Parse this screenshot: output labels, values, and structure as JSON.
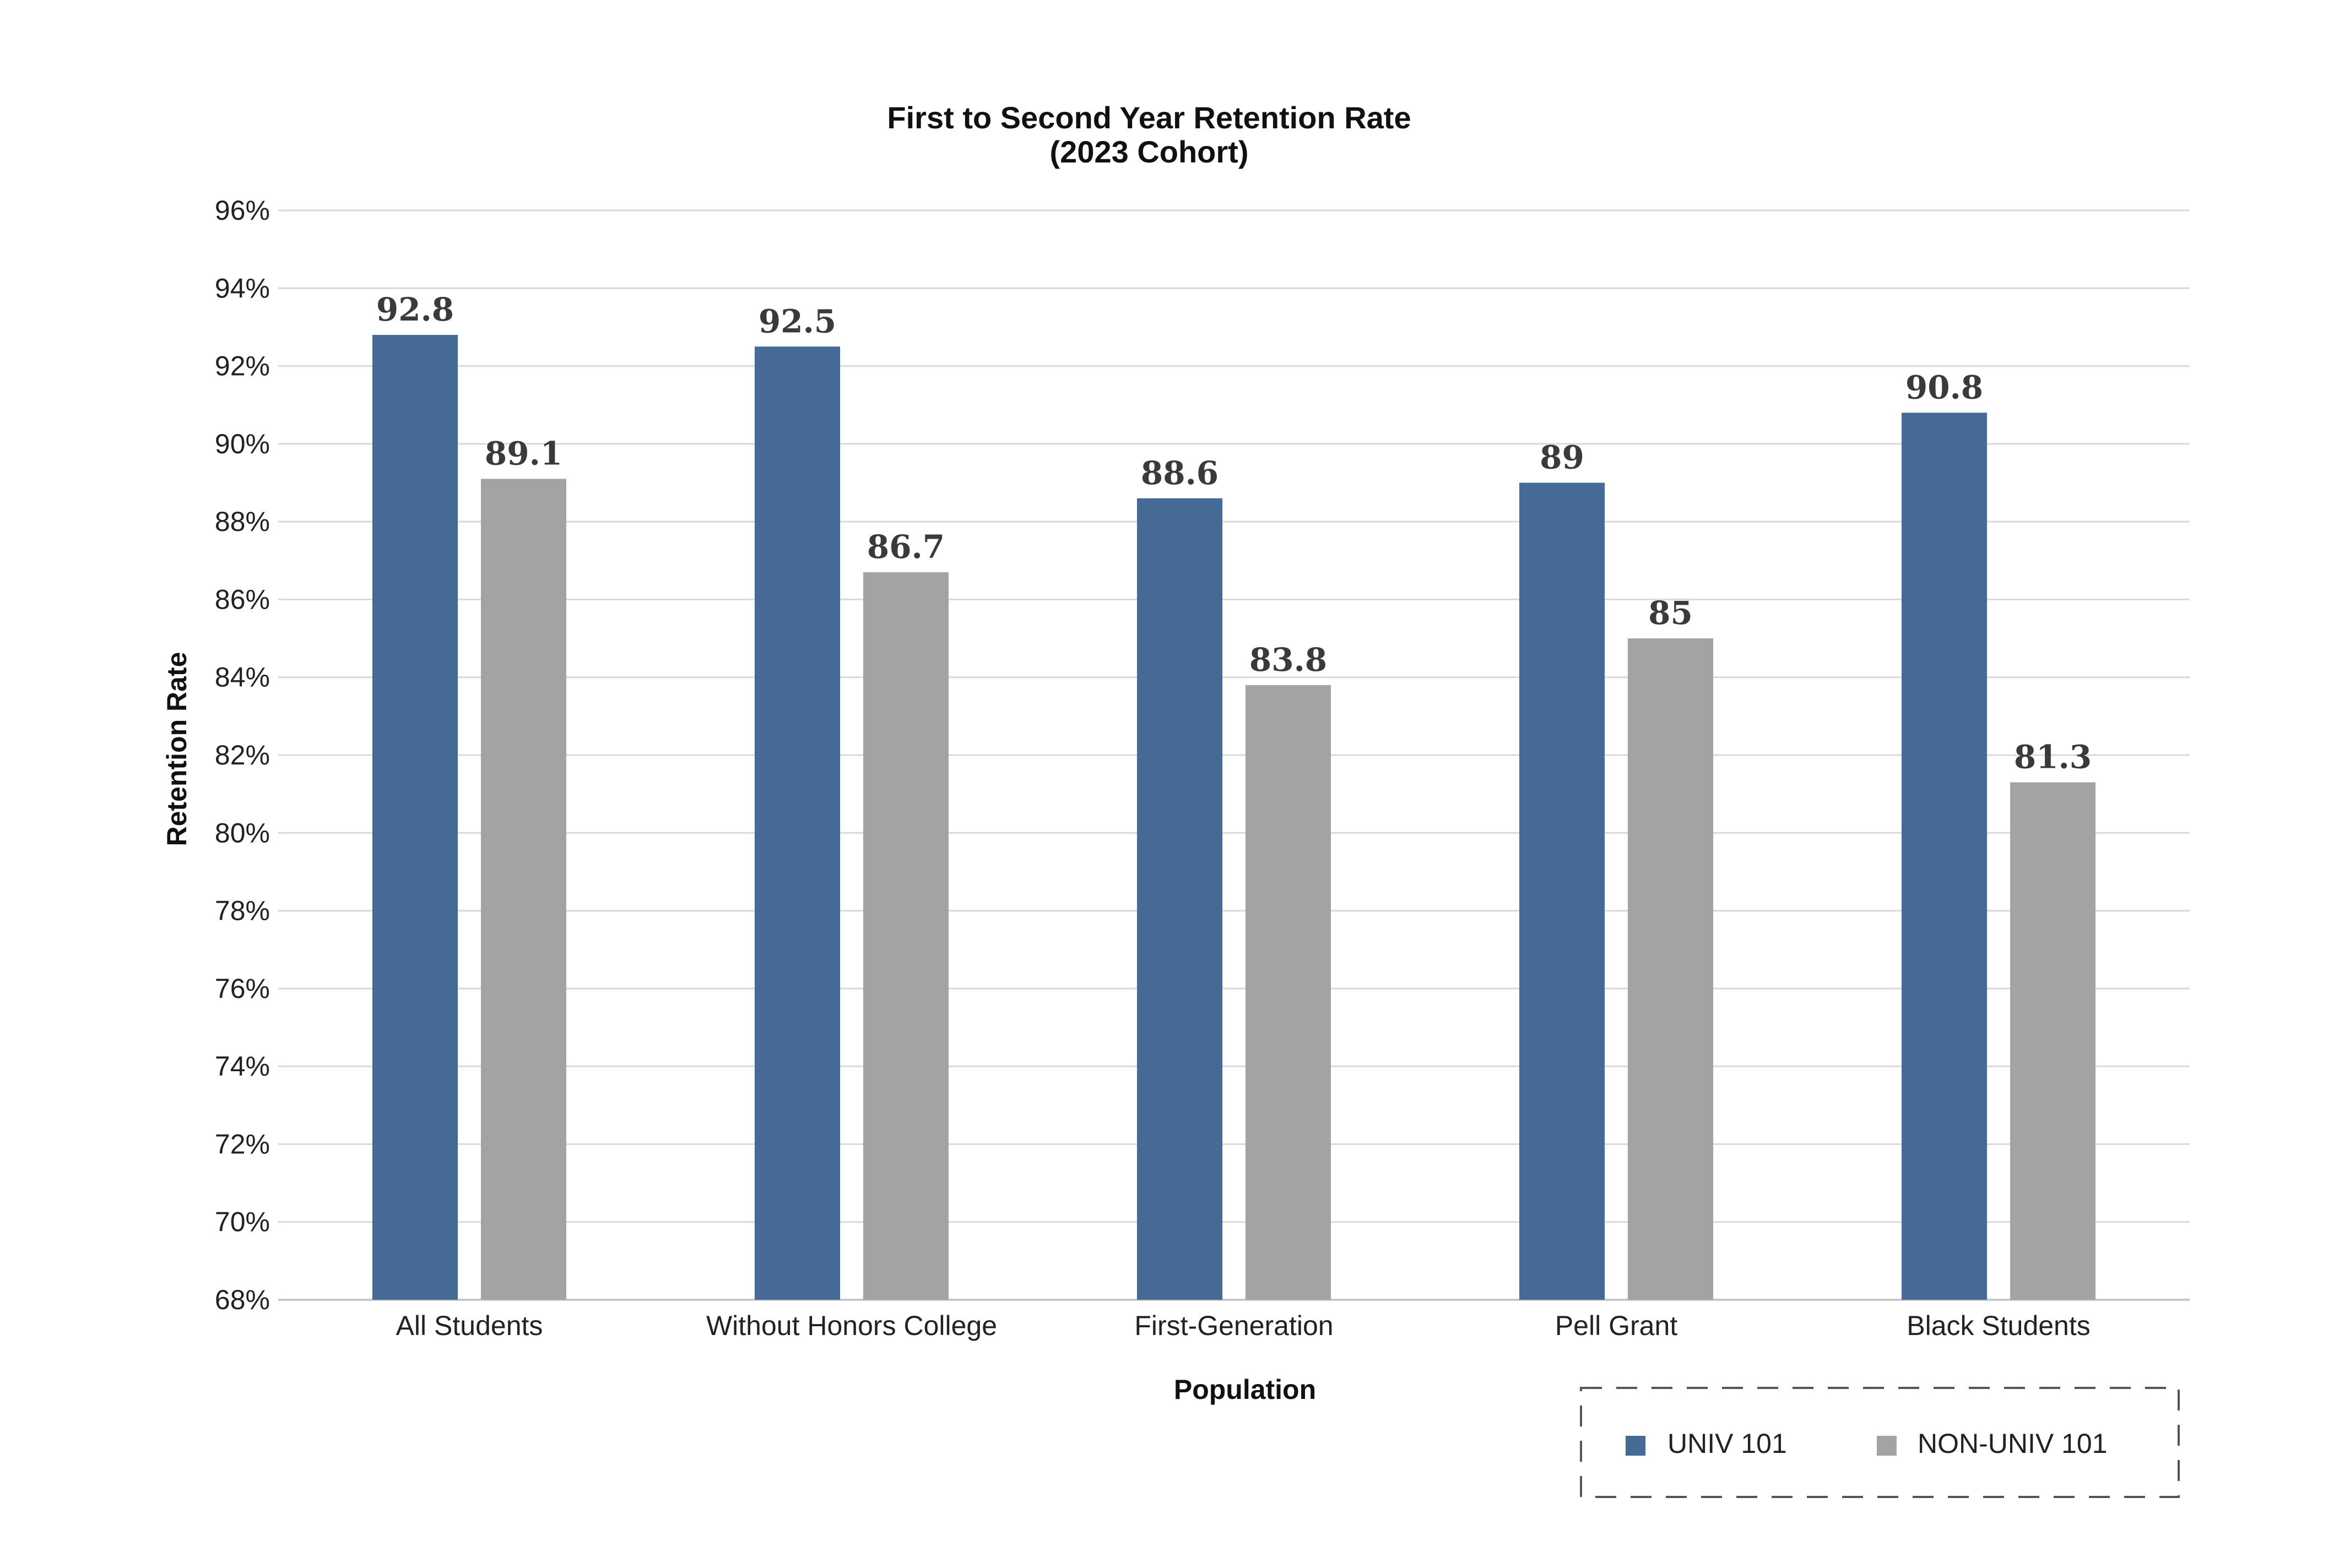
{
  "chart_data": {
    "type": "bar",
    "title": "First to Second Year Retention Rate",
    "subtitle": "(2023 Cohort)",
    "xlabel": "Population",
    "ylabel": "Retention Rate",
    "categories": [
      "All Students",
      "Without Honors College",
      "First-Generation",
      "Pell Grant",
      "Black Students"
    ],
    "series": [
      {
        "name": "UNIV 101",
        "color": "#456a95",
        "values": [
          92.8,
          92.5,
          88.6,
          89,
          90.8
        ],
        "labels": [
          "92.8",
          "92.5",
          "88.6",
          "89",
          "90.8"
        ]
      },
      {
        "name": "NON-UNIV 101",
        "color": "#a3a3a3",
        "values": [
          89.1,
          86.7,
          83.8,
          85,
          81.3
        ],
        "labels": [
          "89.1",
          "86.7",
          "83.8",
          "85",
          "81.3"
        ]
      }
    ],
    "ylim": [
      68,
      96
    ],
    "ytick_step": 2,
    "ytick_labels": [
      "68%",
      "70%",
      "72%",
      "74%",
      "76%",
      "78%",
      "80%",
      "82%",
      "84%",
      "86%",
      "88%",
      "90%",
      "92%",
      "94%",
      "96%"
    ],
    "grid": true,
    "gridline_color": "#d9d9d9",
    "legend_position": "bottom-right"
  }
}
